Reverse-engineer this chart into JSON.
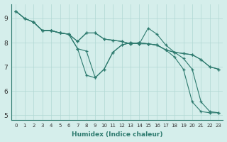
{
  "line1": {
    "x": [
      0,
      1,
      2,
      3,
      4,
      5,
      6,
      7,
      8,
      9,
      10,
      11,
      12,
      13,
      14,
      15,
      16,
      17,
      18,
      19,
      20,
      21,
      22,
      23
    ],
    "y": [
      9.3,
      9.0,
      8.85,
      8.5,
      8.5,
      8.4,
      8.35,
      7.75,
      6.65,
      6.55,
      6.9,
      7.6,
      7.9,
      8.0,
      7.95,
      7.95,
      7.9,
      7.7,
      7.4,
      6.9,
      5.55,
      5.15,
      5.1,
      5.1
    ]
  },
  "line2": {
    "x": [
      0,
      1,
      2,
      3,
      4,
      5,
      6,
      7,
      8,
      9,
      10,
      11,
      12,
      13,
      14,
      15,
      16,
      17,
      18,
      19,
      20,
      21,
      22,
      23
    ],
    "y": [
      9.3,
      9.0,
      8.85,
      8.5,
      8.5,
      8.4,
      8.35,
      8.05,
      8.4,
      8.4,
      8.15,
      8.1,
      8.05,
      7.95,
      8.0,
      7.95,
      7.9,
      7.7,
      7.6,
      7.55,
      7.5,
      7.3,
      7.0,
      6.9
    ]
  },
  "line3": {
    "x": [
      2,
      3,
      4,
      5,
      6,
      7,
      8,
      9,
      10,
      11,
      12,
      13,
      14,
      15,
      16,
      17,
      18,
      19,
      20,
      21,
      22,
      23
    ],
    "y": [
      8.85,
      8.5,
      8.5,
      8.4,
      8.35,
      8.05,
      8.4,
      8.4,
      8.15,
      8.1,
      8.05,
      7.95,
      8.0,
      7.95,
      7.9,
      7.7,
      7.6,
      7.55,
      7.5,
      7.3,
      7.0,
      6.9
    ]
  },
  "line4": {
    "x": [
      0,
      1,
      2,
      3,
      4,
      5,
      6,
      7,
      8,
      9,
      10,
      11,
      12,
      13,
      14,
      15,
      16,
      17,
      18,
      19,
      20,
      21,
      22,
      23
    ],
    "y": [
      9.3,
      9.0,
      8.85,
      8.5,
      8.5,
      8.4,
      8.35,
      7.75,
      7.65,
      6.55,
      6.9,
      7.6,
      7.9,
      8.0,
      7.95,
      8.6,
      8.35,
      7.9,
      7.6,
      7.35,
      6.9,
      5.55,
      5.15,
      5.1
    ]
  },
  "line_color": "#2d7a6e",
  "bg_color": "#d5eeeb",
  "grid_color": "#b0d8d3",
  "xlabel": "Humidex (Indice chaleur)",
  "xlim": [
    -0.5,
    23.5
  ],
  "ylim": [
    4.8,
    9.6
  ],
  "yticks": [
    5,
    6,
    7,
    8,
    9
  ],
  "xticks": [
    0,
    1,
    2,
    3,
    4,
    5,
    6,
    7,
    8,
    9,
    10,
    11,
    12,
    13,
    14,
    15,
    16,
    17,
    18,
    19,
    20,
    21,
    22,
    23
  ]
}
